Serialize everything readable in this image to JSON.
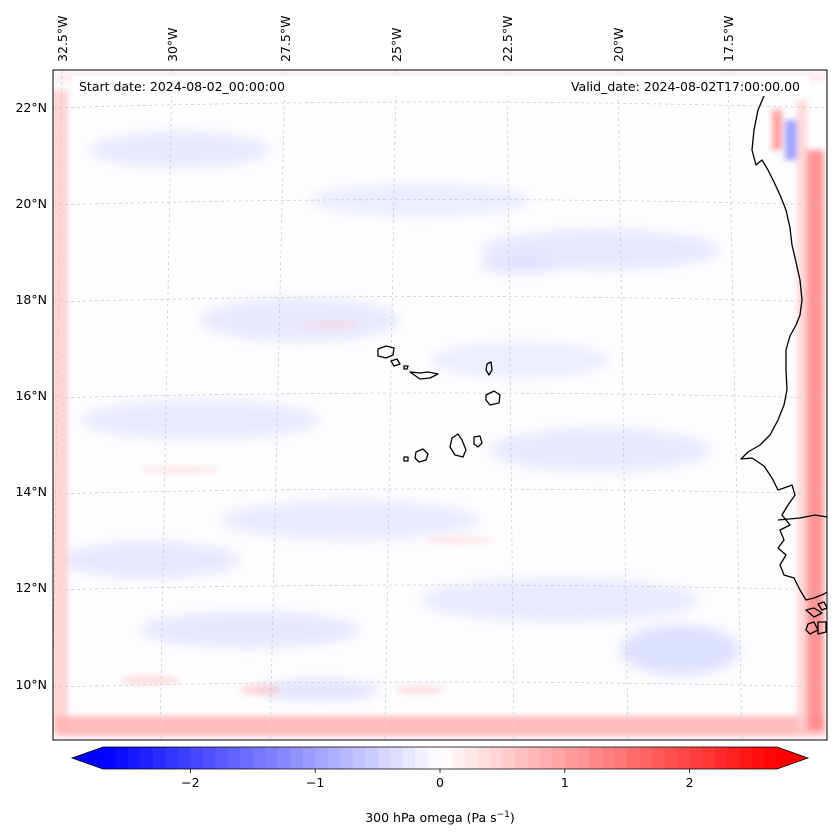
{
  "map": {
    "header": {
      "start_date_label": "Start date: 2024-08-02_00:00:00",
      "valid_date_label": "Valid_date: 2024-08-02T17:00:00.00"
    },
    "longitude_labels": [
      "32.5°W",
      "30°W",
      "27.5°W",
      "25°W",
      "22.5°W",
      "20°W",
      "17.5°W"
    ],
    "latitude_labels": [
      "22°N",
      "20°N",
      "18°N",
      "16°N",
      "14°N",
      "12°N",
      "10°N"
    ],
    "extent": {
      "lon_min": -32.8,
      "lon_max": -15.8,
      "lat_min": 8.9,
      "lat_max": 22.8
    },
    "field": {
      "variable": "300 hPa omega",
      "colormap": "bwr",
      "color_negative": "#0000ff",
      "color_zero": "#ffffff",
      "color_positive": "#ff0000",
      "coastline_color": "#000000",
      "gridline_style": "dashed light gray"
    },
    "colorbar": {
      "label_main": "300 hPa omega (Pa s",
      "label_exp": "−1",
      "label_close": ")",
      "range": [
        -2.7,
        2.7
      ],
      "ticks": [
        {
          "value": -2,
          "label": "−2"
        },
        {
          "value": -1,
          "label": "−1"
        },
        {
          "value": 0,
          "label": "0"
        },
        {
          "value": 1,
          "label": "1"
        },
        {
          "value": 2,
          "label": "2"
        }
      ],
      "extend": "both"
    }
  }
}
